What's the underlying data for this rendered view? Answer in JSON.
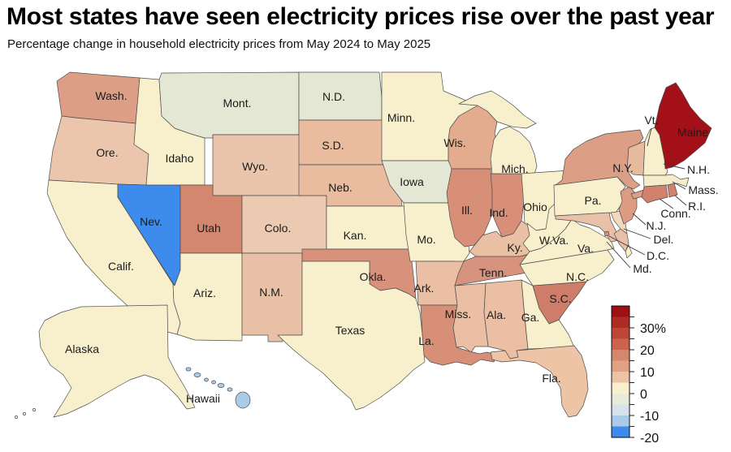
{
  "header": {
    "title": "Most states have seen electricity prices rise over the past year",
    "subtitle": "Percentage change in household electricity prices from May 2024 to May 2025"
  },
  "chart_data": {
    "type": "choropleth_map",
    "title": "Most states have seen electricity prices rise over the past year",
    "subtitle": "Percentage change in household electricity prices from May 2024 to May 2025",
    "colorbar": {
      "position": "bottom-right",
      "orientation": "vertical",
      "top_value": 40,
      "bottom_value": -20,
      "band_step": 5,
      "band_colors_top_to_bottom": [
        "#9e1016",
        "#ad2b24",
        "#bc4737",
        "#ca634c",
        "#d5876d",
        "#e0a184",
        "#ecc3a4",
        "#f8efcd",
        "#e8ebd8",
        "#d6e3ef",
        "#a9cbe8",
        "#3d8bec"
      ],
      "labeled_ticks": [
        {
          "value": 30,
          "text": "30%"
        },
        {
          "value": 20,
          "text": "20"
        },
        {
          "value": 10,
          "text": "10"
        },
        {
          "value": 0,
          "text": "0"
        },
        {
          "value": -10,
          "text": "-10"
        },
        {
          "value": -20,
          "text": "-20"
        }
      ]
    },
    "states": {
      "WA": {
        "label": "Wash.",
        "color": "#dc9e85",
        "pct_change_band": "+10 to +15"
      },
      "OR": {
        "label": "Ore.",
        "color": "#ecc5ad",
        "pct_change_band": "+5 to +10"
      },
      "CA": {
        "label": "Calif.",
        "color": "#f8efcd",
        "pct_change_band": "0 to +5"
      },
      "NV": {
        "label": "Nev.",
        "color": "#3d8bec",
        "pct_change_band": "-20 to -15"
      },
      "ID": {
        "label": "Idaho",
        "color": "#f8efcd",
        "pct_change_band": "0 to +5"
      },
      "MT": {
        "label": "Mont.",
        "color": "#e4e7d3",
        "pct_change_band": "-5 to 0"
      },
      "WY": {
        "label": "Wyo.",
        "color": "#eac4ab",
        "pct_change_band": "+5 to +10"
      },
      "UT": {
        "label": "Utah",
        "color": "#d4876f",
        "pct_change_band": "+15 to +20"
      },
      "CO": {
        "label": "Colo.",
        "color": "#ecc9b1",
        "pct_change_band": "+5 to +10"
      },
      "AZ": {
        "label": "Ariz.",
        "color": "#f8efcd",
        "pct_change_band": "0 to +5"
      },
      "NM": {
        "label": "N.M.",
        "color": "#e7c0a5",
        "pct_change_band": "+5 to +10"
      },
      "ND": {
        "label": "N.D.",
        "color": "#e4e7d3",
        "pct_change_band": "-5 to 0"
      },
      "SD": {
        "label": "S.D.",
        "color": "#e9bc9f",
        "pct_change_band": "+5 to +10"
      },
      "NE": {
        "label": "Neb.",
        "color": "#e9bc9f",
        "pct_change_band": "+5 to +10"
      },
      "KS": {
        "label": "Kan.",
        "color": "#f8efcd",
        "pct_change_band": "0 to +5"
      },
      "OK": {
        "label": "Okla.",
        "color": "#d8927b",
        "pct_change_band": "+15 to +20"
      },
      "TX": {
        "label": "Texas",
        "color": "#f8efcd",
        "pct_change_band": "0 to +5"
      },
      "MN": {
        "label": "Minn.",
        "color": "#f8efcd",
        "pct_change_band": "0 to +5"
      },
      "IA": {
        "label": "Iowa",
        "color": "#e4e7d3",
        "pct_change_band": "-5 to 0"
      },
      "MO": {
        "label": "Mo.",
        "color": "#f8efcd",
        "pct_change_band": "0 to +5"
      },
      "AR": {
        "label": "Ark.",
        "color": "#eabfa3",
        "pct_change_band": "+5 to +10"
      },
      "LA": {
        "label": "La.",
        "color": "#d78f78",
        "pct_change_band": "+15 to +20"
      },
      "WI": {
        "label": "Wis.",
        "color": "#e4ac8e",
        "pct_change_band": "+10 to +15"
      },
      "IL": {
        "label": "Ill.",
        "color": "#d78f78",
        "pct_change_band": "+15 to +20"
      },
      "IN": {
        "label": "Ind.",
        "color": "#d78f78",
        "pct_change_band": "+15 to +20"
      },
      "MI": {
        "label": "Mich.",
        "color": "#f8efcd",
        "pct_change_band": "0 to +5"
      },
      "OH": {
        "label": "Ohio",
        "color": "#f8efcd",
        "pct_change_band": "0 to +5"
      },
      "KY": {
        "label": "Ky.",
        "color": "#eac0a4",
        "pct_change_band": "+5 to +10"
      },
      "TN": {
        "label": "Tenn.",
        "color": "#d7937e",
        "pct_change_band": "+15 to +20"
      },
      "MS": {
        "label": "Miss.",
        "color": "#eabfa3",
        "pct_change_band": "+5 to +10"
      },
      "AL": {
        "label": "Ala.",
        "color": "#eabfa3",
        "pct_change_band": "+5 to +10"
      },
      "GA": {
        "label": "Ga.",
        "color": "#f8efcd",
        "pct_change_band": "0 to +5"
      },
      "FL": {
        "label": "Fla.",
        "color": "#eec4a6",
        "pct_change_band": "+5 to +10"
      },
      "SC": {
        "label": "S.C.",
        "color": "#cd7d69",
        "pct_change_band": "+15 to +20"
      },
      "NC": {
        "label": "N.C.",
        "color": "#f8efcd",
        "pct_change_band": "0 to +5"
      },
      "VA": {
        "label": "Va.",
        "color": "#f8efcd",
        "pct_change_band": "0 to +5"
      },
      "WV": {
        "label": "W.Va.",
        "color": "#f8efcd",
        "pct_change_band": "0 to +5"
      },
      "PA": {
        "label": "Pa.",
        "color": "#f8efcd",
        "pct_change_band": "0 to +5"
      },
      "NY": {
        "label": "N.Y.",
        "color": "#dc9e85",
        "pct_change_band": "+10 to +15"
      },
      "NJ": {
        "label": "N.J.",
        "color": "#dc9c83",
        "pct_change_band": "+10 to +15"
      },
      "DE": {
        "label": "Del.",
        "color": "#f0d9bd",
        "pct_change_band": "+5 to +10"
      },
      "MD": {
        "label": "Md.",
        "color": "#e9c0a8",
        "pct_change_band": "+5 to +10"
      },
      "DC": {
        "label": "D.C.",
        "color": "#d78f78",
        "pct_change_band": "+15 to +20"
      },
      "VT": {
        "label": "Vt.",
        "color": "#e7bb9e",
        "pct_change_band": "+5 to +10"
      },
      "NH": {
        "label": "N.H.",
        "color": "#f8efcd",
        "pct_change_band": "0 to +5"
      },
      "MA": {
        "label": "Mass.",
        "color": "#f5ecca",
        "pct_change_band": "0 to +5"
      },
      "CT": {
        "label": "Conn.",
        "color": "#d2826c",
        "pct_change_band": "+15 to +20"
      },
      "RI": {
        "label": "R.I.",
        "color": "#d2826c",
        "pct_change_band": "+15 to +20"
      },
      "ME": {
        "label": "Maine",
        "color": "#a31018",
        "pct_change_band": "+35 to +40"
      },
      "AK": {
        "label": "Alaska",
        "color": "#f8efcd",
        "pct_change_band": "0 to +5"
      },
      "HI": {
        "label": "Hawaii",
        "color": "#a9cbe8",
        "pct_change_band": "-15 to -10"
      }
    }
  }
}
